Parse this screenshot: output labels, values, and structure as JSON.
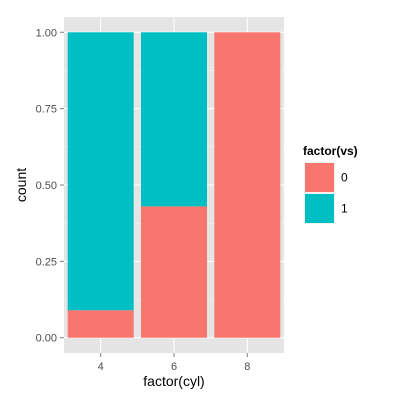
{
  "chart_data": {
    "type": "bar",
    "stacked": true,
    "position": "fill",
    "categories": [
      "4",
      "6",
      "8"
    ],
    "series": [
      {
        "name": "0",
        "values": [
          0.09,
          0.43,
          1.0
        ]
      },
      {
        "name": "1",
        "values": [
          0.91,
          0.57,
          0.0
        ]
      }
    ],
    "xlabel": "factor(cyl)",
    "ylabel": "count",
    "ylim": [
      -0.05,
      1.05
    ],
    "yticks": [
      0.0,
      0.25,
      0.5,
      0.75,
      1.0
    ],
    "ytick_labels": [
      "0.00",
      "0.25",
      "0.50",
      "0.75",
      "1.00"
    ],
    "grid": true,
    "legend": {
      "title": "factor(vs)",
      "placement": "right",
      "items": [
        {
          "label": "0",
          "color": "#F8766D"
        },
        {
          "label": "1",
          "color": "#00BFC4"
        }
      ]
    },
    "panel_color": "#E5E5E5",
    "colors": [
      "#F8766D",
      "#00BFC4"
    ]
  }
}
